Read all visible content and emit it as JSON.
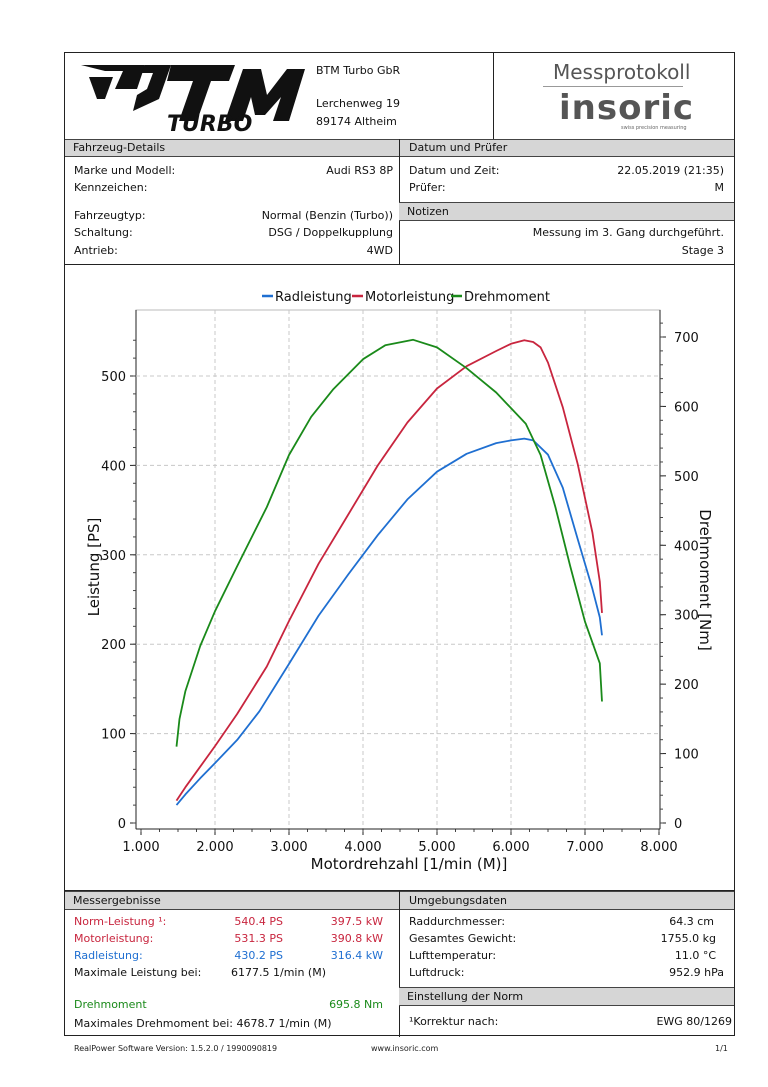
{
  "header": {
    "company_name": "BTM Turbo GbR",
    "street": "Lerchenweg 19",
    "city": "89174 Altheim",
    "logo_text_top": "BTM",
    "logo_text_bottom": "TURBO",
    "protocol_title": "Messprotokoll",
    "brand": "insoric",
    "brand_tagline": "swiss precision measuring"
  },
  "vehicle": {
    "section_title": "Fahrzeug-Details",
    "make_label": "Marke und Modell:",
    "make_value": "Audi RS3 8P",
    "plate_label": "Kennzeichen:",
    "plate_value": "",
    "type_label": "Fahrzeugtyp:",
    "type_value": "Normal (Benzin (Turbo))",
    "gearbox_label": "Schaltung:",
    "gearbox_value": "DSG / Doppelkupplung",
    "drive_label": "Antrieb:",
    "drive_value": "4WD"
  },
  "date_tester": {
    "section_title": "Datum und Prüfer",
    "datetime_label": "Datum und Zeit:",
    "datetime_value": "22.05.2019 (21:35)",
    "tester_label": "Prüfer:",
    "tester_value": "M"
  },
  "notes": {
    "section_title": "Notizen",
    "line1": "Messung im 3. Gang durchgeführt.",
    "line2": "Stage 3"
  },
  "chart_data": {
    "type": "line",
    "title": "",
    "xlabel": "Motordrehzahl [1/min (M)]",
    "ylabel": "Leistung [PS]",
    "y2label": "Drehmoment [Nm]",
    "xlim": [
      1000,
      8000
    ],
    "ylim": [
      0,
      550
    ],
    "y2lim": [
      0,
      730
    ],
    "xticks": [
      "1.000",
      "2.000",
      "3.000",
      "4.000",
      "5.000",
      "6.000",
      "7.000",
      "8.000"
    ],
    "yticks": [
      "0",
      "100",
      "200",
      "300",
      "400",
      "500"
    ],
    "y2ticks": [
      "0",
      "100",
      "200",
      "300",
      "400",
      "500",
      "600",
      "700"
    ],
    "grid": true,
    "legend_position": "top-center",
    "series": [
      {
        "name": "Radleistung",
        "axis": "left",
        "color": "#1f6fd1",
        "x": [
          1480,
          1600,
          1800,
          2000,
          2300,
          2600,
          3000,
          3400,
          3800,
          4200,
          4600,
          5000,
          5400,
          5800,
          6000,
          6180,
          6300,
          6500,
          6700,
          6900,
          7100,
          7200,
          7230
        ],
        "y": [
          20,
          32,
          50,
          67,
          93,
          125,
          178,
          232,
          278,
          322,
          362,
          393,
          413,
          425,
          428,
          430,
          428,
          412,
          375,
          318,
          262,
          230,
          210
        ]
      },
      {
        "name": "Motorleistung",
        "axis": "left",
        "color": "#c8253e",
        "x": [
          1480,
          1600,
          1800,
          2000,
          2300,
          2700,
          3000,
          3400,
          3800,
          4200,
          4600,
          5000,
          5400,
          5800,
          6000,
          6180,
          6300,
          6400,
          6500,
          6700,
          6900,
          7100,
          7200,
          7230
        ],
        "y": [
          25,
          40,
          63,
          86,
          122,
          175,
          226,
          290,
          345,
          400,
          448,
          486,
          511,
          528,
          536,
          540,
          538,
          532,
          515,
          465,
          402,
          325,
          270,
          235
        ]
      },
      {
        "name": "Drehmoment",
        "axis": "right",
        "color": "#1a8a1a",
        "x": [
          1480,
          1520,
          1600,
          1800,
          2000,
          2300,
          2700,
          3000,
          3300,
          3600,
          4000,
          4300,
          4678,
          5000,
          5400,
          5800,
          6200,
          6400,
          6600,
          6800,
          7000,
          7200,
          7230
        ],
        "y": [
          110,
          150,
          190,
          255,
          305,
          370,
          455,
          530,
          585,
          625,
          668,
          688,
          696,
          685,
          655,
          620,
          575,
          530,
          455,
          370,
          290,
          230,
          175
        ]
      }
    ]
  },
  "results": {
    "section_title": "Messergebnisse",
    "norm_label": "Norm-Leistung ¹:",
    "norm_ps": "540.4 PS",
    "norm_kw": "397.5 kW",
    "motor_label": "Motorleistung:",
    "motor_ps": "531.3 PS",
    "motor_kw": "390.8 kW",
    "wheel_label": "Radleistung:",
    "wheel_ps": "430.2 PS",
    "wheel_kw": "316.4 kW",
    "maxpower_label": "Maximale Leistung bei:",
    "maxpower_value": "6177.5 1/min (M)",
    "torque_label": "Drehmoment",
    "torque_value": "695.8 Nm",
    "maxtorque_text": "Maximales Drehmoment bei: 4678.7 1/min (M)"
  },
  "environment": {
    "section_title": "Umgebungsdaten",
    "wheel_diam_label": "Raddurchmesser:",
    "wheel_diam_value": "64.3 cm",
    "weight_label": "Gesamtes Gewicht:",
    "weight_value": "1755.0 kg",
    "air_temp_label": "Lufttemperatur:",
    "air_temp_value": "11.0 °C",
    "air_press_label": "Luftdruck:",
    "air_press_value": "952.9 hPa"
  },
  "norm": {
    "section_title": "Einstellung der Norm",
    "correction_label": "¹Korrektur nach:",
    "correction_value": "EWG 80/1269"
  },
  "footer": {
    "software": "RealPower Software Version: 1.5.2.0 / 1990090819",
    "website": "www.insoric.com",
    "page": "1/1"
  }
}
